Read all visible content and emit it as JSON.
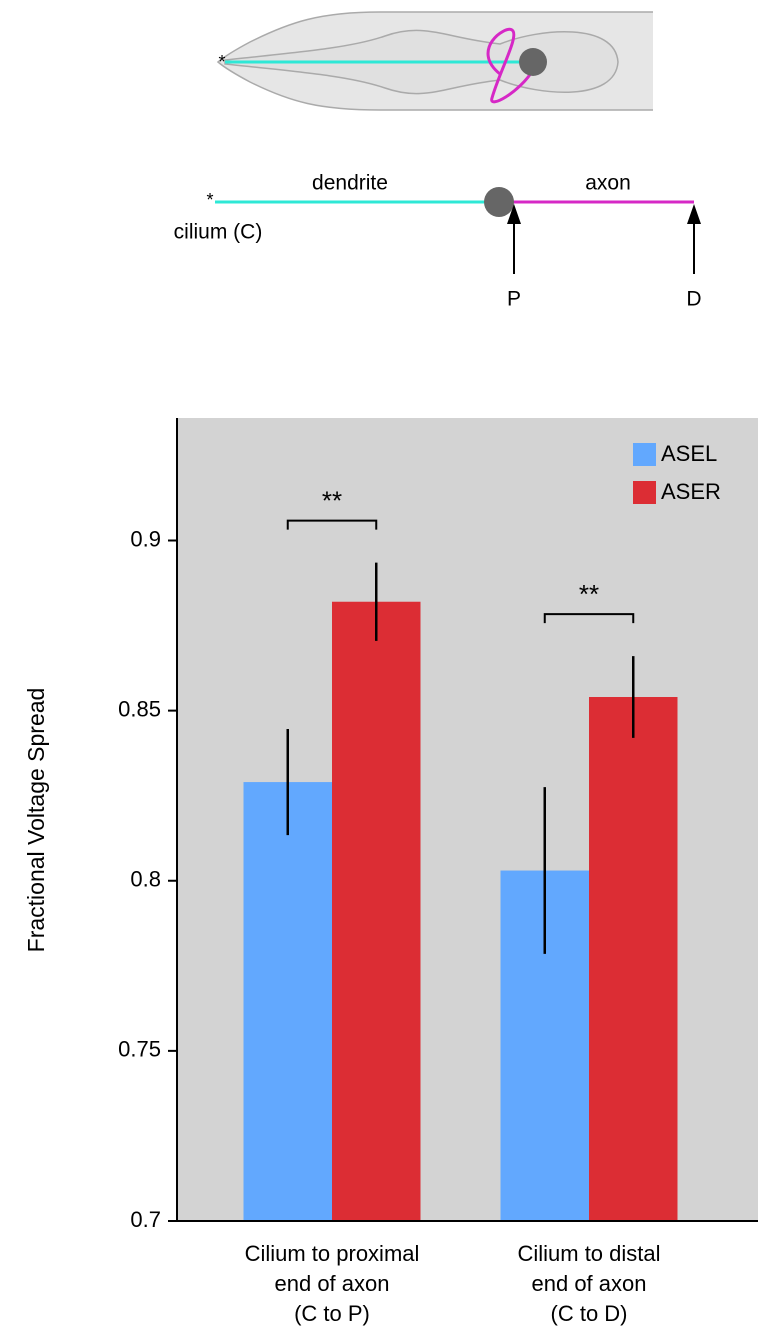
{
  "diagram": {
    "cilium_marker": "*",
    "dendrite": "dendrite",
    "axon": "axon",
    "cilium": "cilium (C)",
    "proximal": "P",
    "distal": "D"
  },
  "chart_data": {
    "type": "bar",
    "y_label": "Fractional Voltage Spread",
    "categories": [
      [
        "Cilium to proximal",
        "end of axon",
        "(C to P)"
      ],
      [
        "Cilium to distal",
        "end of axon",
        "(C to D)"
      ]
    ],
    "series": [
      {
        "name": "ASEL",
        "color": "#62a8fe",
        "values": [
          0.829,
          0.803
        ],
        "errors": [
          0.0156,
          0.0245
        ]
      },
      {
        "name": "ASER",
        "color": "#dc2d34",
        "values": [
          0.882,
          0.854
        ],
        "errors": [
          0.0115,
          0.012
        ]
      }
    ],
    "significance": [
      "**",
      "**"
    ],
    "ylim": [
      0.7,
      0.936
    ],
    "yticks": [
      0.7,
      0.75,
      0.8,
      0.85,
      0.9
    ],
    "legend": "top-right",
    "background": "#d3d3d3"
  }
}
